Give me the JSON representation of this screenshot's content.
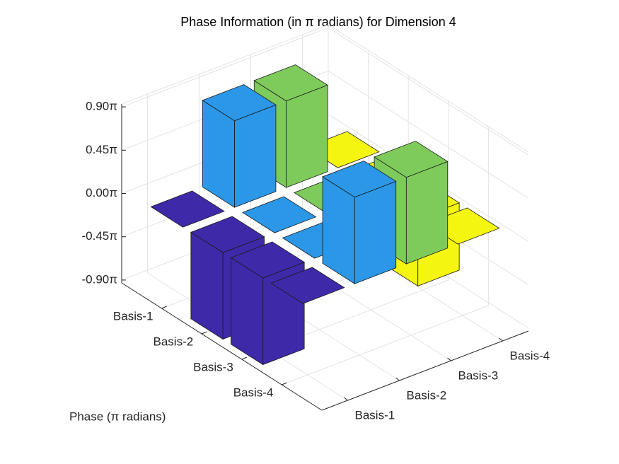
{
  "chart_data": {
    "type": "bar3",
    "title": "Phase Information (in π radians) for Dimension 4",
    "zlabel": "Phase (π radians)",
    "y_categories": [
      "Basis-1",
      "Basis-2",
      "Basis-3",
      "Basis-4"
    ],
    "x_categories": [
      "Basis-1",
      "Basis-2",
      "Basis-3",
      "Basis-4"
    ],
    "series": [
      {
        "color": "#3e2aa8",
        "values": [
          0,
          -0.9,
          -0.9,
          0
        ]
      },
      {
        "color": "#2b97e6",
        "values": [
          0.9,
          0,
          0,
          0.9
        ]
      },
      {
        "color": "#7ecb5b",
        "values": [
          0.9,
          0,
          0,
          0.9
        ]
      },
      {
        "color": "#f5f512",
        "values": [
          0,
          0,
          -0.7,
          0
        ]
      }
    ],
    "zlim": [
      -0.93,
      0.93
    ],
    "zticks": [
      {
        "value": 0.9,
        "label": "0.90π"
      },
      {
        "value": 0.45,
        "label": "0.45π"
      },
      {
        "value": 0,
        "label": "0.00π"
      },
      {
        "value": -0.45,
        "label": "-0.45π"
      },
      {
        "value": -0.9,
        "label": "-0.90π"
      }
    ],
    "grid": true
  }
}
